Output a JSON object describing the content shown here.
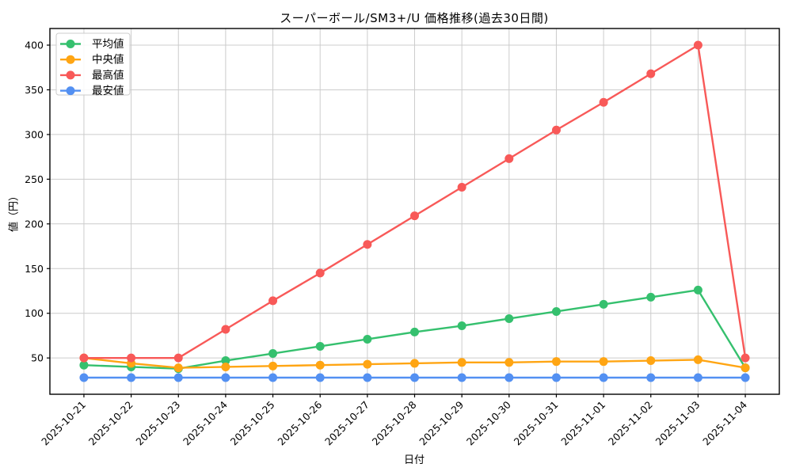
{
  "chart_data": {
    "type": "line",
    "title": "スーパーボール/SM3+/U 価格推移(過去30日間)",
    "xlabel": "日付",
    "ylabel": "値（円）",
    "categories": [
      "2025-10-21",
      "2025-10-22",
      "2025-10-23",
      "2025-10-24",
      "2025-10-25",
      "2025-10-26",
      "2025-10-27",
      "2025-10-28",
      "2025-10-29",
      "2025-10-30",
      "2025-10-31",
      "2025-11-01",
      "2025-11-02",
      "2025-11-03",
      "2025-11-04"
    ],
    "series": [
      {
        "id": "average",
        "name": "平均値",
        "color": "#35c06e",
        "values": [
          42,
          40,
          38,
          47,
          55,
          63,
          71,
          79,
          86,
          94,
          102,
          110,
          118,
          126,
          39
        ]
      },
      {
        "id": "median",
        "name": "中央値",
        "color": "#ffa513",
        "values": [
          50,
          44,
          39,
          40,
          41,
          42,
          43,
          44,
          45,
          45,
          46,
          46,
          47,
          48,
          39
        ]
      },
      {
        "id": "max",
        "name": "最高値",
        "color": "#f85958",
        "values": [
          50,
          50,
          50,
          82,
          114,
          145,
          177,
          209,
          241,
          273,
          305,
          336,
          368,
          400,
          50
        ]
      },
      {
        "id": "min",
        "name": "最安値",
        "color": "#5390f2",
        "values": [
          28,
          28,
          28,
          28,
          28,
          28,
          28,
          28,
          28,
          28,
          28,
          28,
          28,
          28,
          28
        ]
      }
    ],
    "yticks": [
      50,
      100,
      150,
      200,
      250,
      300,
      350,
      400
    ],
    "ylim": [
      9.4,
      418.6
    ],
    "grid": true,
    "grid_color": "#cccccc",
    "spine_color": "#000000",
    "background": "#ffffff",
    "legend_position": "upper-left",
    "marker": "circle"
  }
}
